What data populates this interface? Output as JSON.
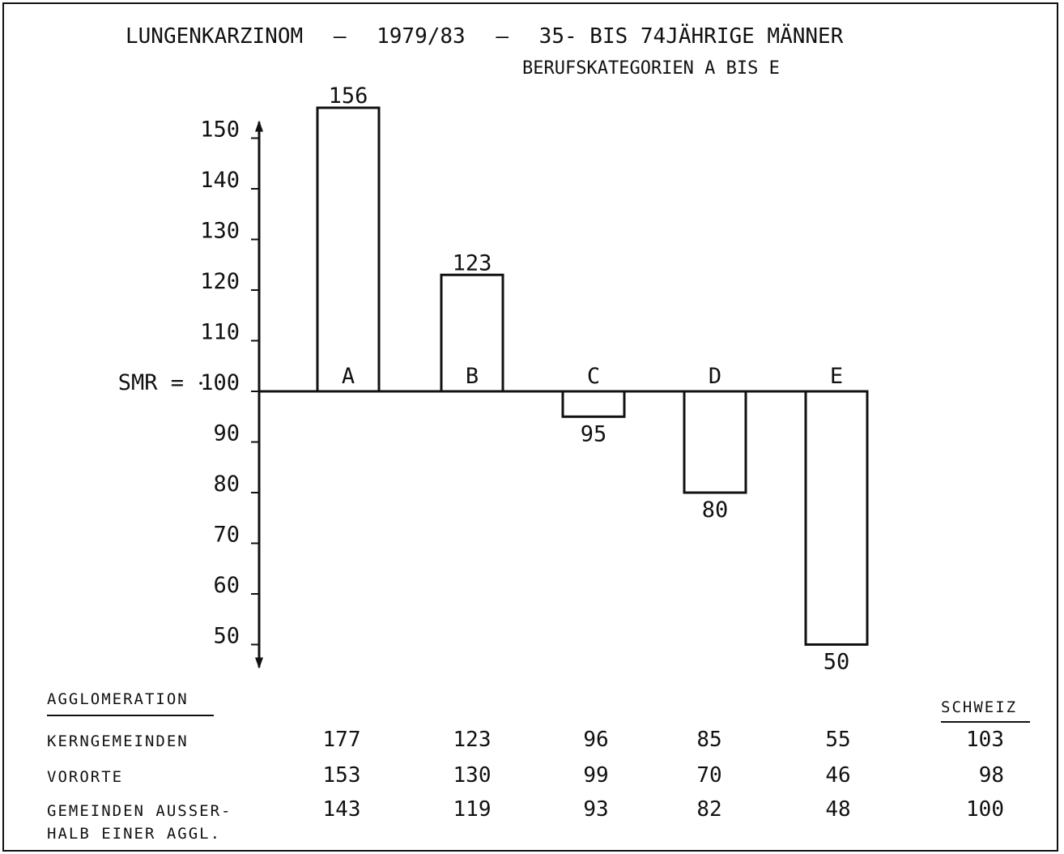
{
  "chart_data": {
    "type": "bar",
    "title": "LUNGENKARZINOM",
    "title_sep1": "–",
    "period": "1979/83",
    "title_sep2": "–",
    "population": "35- BIS 74JÄHRIGE MÄNNER",
    "subtitle": "BERUFSKATEGORIEN A BIS E",
    "ylabel": "SMR =",
    "baseline": 100,
    "ylim": [
      50,
      150
    ],
    "yticks": [
      50,
      60,
      70,
      80,
      90,
      100,
      110,
      120,
      130,
      140,
      150
    ],
    "categories": [
      "A",
      "B",
      "C",
      "D",
      "E"
    ],
    "values": [
      156,
      123,
      95,
      80,
      50
    ],
    "value_labels": [
      "156",
      "123",
      "95",
      "80",
      "50"
    ]
  },
  "table": {
    "header": "AGGLOMERATION",
    "total_header": "SCHWEIZ",
    "rows": [
      {
        "label": "KERNGEMEINDEN",
        "values": [
          "177",
          "123",
          "96",
          "85",
          "55"
        ],
        "total": "103"
      },
      {
        "label": "VORORTE",
        "values": [
          "153",
          "130",
          "99",
          "70",
          "46"
        ],
        "total": "98"
      },
      {
        "label_line1": "GEMEINDEN AUSSER-",
        "label_line2": "HALB EINER AGGL.",
        "values": [
          "143",
          "119",
          "93",
          "82",
          "48"
        ],
        "total": "100"
      }
    ]
  },
  "colors": {
    "ink": "#111111",
    "paper": "#ffffff"
  }
}
